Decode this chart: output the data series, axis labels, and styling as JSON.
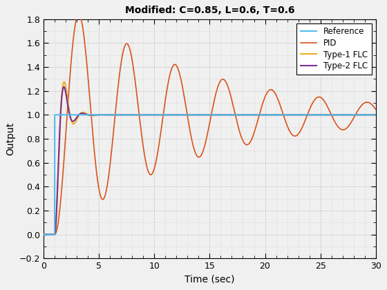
{
  "title": "Modified: C=0.85, L=0.6, T=0.6",
  "xlabel": "Time (sec)",
  "ylabel": "Output",
  "xlim": [
    0,
    30
  ],
  "ylim": [
    -0.2,
    1.8
  ],
  "yticks": [
    -0.2,
    0.0,
    0.2,
    0.4,
    0.6,
    0.8,
    1.0,
    1.2,
    1.4,
    1.6,
    1.8
  ],
  "xticks": [
    0,
    5,
    10,
    15,
    20,
    25,
    30
  ],
  "reference_color": "#4DBEEE",
  "pid_color": "#D95319",
  "type1_color": "#EDB120",
  "type2_color": "#7E2F8E",
  "reference_lw": 1.5,
  "pid_lw": 1.2,
  "type1_lw": 1.5,
  "type2_lw": 1.5,
  "t_end": 30,
  "dt": 0.005,
  "grid_color": "#B0B0B0",
  "bg_color": "#F0F0F0",
  "axes_bg": "#F0F0F0",
  "legend_labels": [
    "Reference",
    "PID",
    "Type-1 FLC",
    "Type-2 FLC"
  ]
}
